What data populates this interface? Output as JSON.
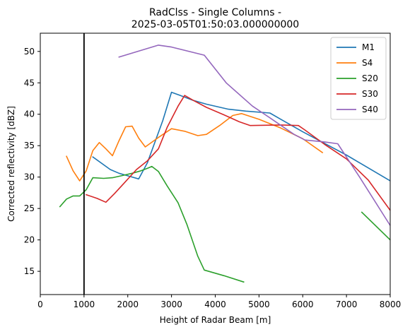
{
  "chart_data": {
    "type": "line",
    "title_lines": [
      "RadClss - Single Columns -",
      "2025-03-05T01:50:03.000000000"
    ],
    "xlabel": "Height of Radar Beam [m]",
    "ylabel": "Corrected reflectivity [dBZ]",
    "xlim": [
      0,
      8000
    ],
    "ylim": [
      11.3,
      52.9
    ],
    "x_ticks": [
      0,
      1000,
      2000,
      3000,
      4000,
      5000,
      6000,
      7000,
      8000
    ],
    "y_ticks": [
      15,
      20,
      25,
      30,
      35,
      40,
      45,
      50
    ],
    "grid": false,
    "legend_position": "top-right",
    "reference_line": {
      "x": 1000,
      "color": "#000000"
    },
    "series": [
      {
        "name": "M1",
        "color": "#1f77b4",
        "segments": [
          [
            [
              1200,
              33.2
            ],
            [
              1600,
              31.2
            ],
            [
              1800,
              30.6
            ],
            [
              2000,
              30.2
            ],
            [
              2250,
              29.7
            ],
            [
              2450,
              32.3
            ],
            [
              2800,
              39.0
            ],
            [
              3000,
              43.5
            ],
            [
              3200,
              43.0
            ],
            [
              3500,
              42.2
            ],
            [
              3800,
              41.6
            ],
            [
              4300,
              40.8
            ],
            [
              4700,
              40.5
            ],
            [
              5250,
              40.2
            ],
            [
              5500,
              39.2
            ],
            [
              6000,
              37.2
            ],
            [
              7000,
              33.5
            ],
            [
              8000,
              29.4
            ]
          ]
        ]
      },
      {
        "name": "S4",
        "color": "#ff7f0e",
        "segments": [
          [
            [
              600,
              33.3
            ],
            [
              750,
              31.0
            ],
            [
              900,
              29.4
            ],
            [
              1050,
              31.0
            ],
            [
              1200,
              34.2
            ],
            [
              1350,
              35.5
            ],
            [
              1500,
              34.5
            ],
            [
              1650,
              33.4
            ],
            [
              1800,
              35.8
            ],
            [
              1950,
              38.0
            ],
            [
              2100,
              38.1
            ],
            [
              2250,
              36.2
            ],
            [
              2400,
              34.8
            ],
            [
              2700,
              36.3
            ],
            [
              3000,
              37.7
            ],
            [
              3300,
              37.3
            ],
            [
              3600,
              36.6
            ],
            [
              3800,
              36.8
            ],
            [
              4100,
              38.2
            ],
            [
              4400,
              39.8
            ],
            [
              4600,
              40.1
            ],
            [
              5000,
              39.2
            ],
            [
              5500,
              37.8
            ],
            [
              6000,
              36.1
            ],
            [
              6450,
              33.9
            ]
          ]
        ]
      },
      {
        "name": "S20",
        "color": "#2ca02c",
        "segments": [
          [
            [
              450,
              25.3
            ],
            [
              600,
              26.5
            ],
            [
              750,
              27.0
            ],
            [
              900,
              27.0
            ],
            [
              1050,
              28.0
            ],
            [
              1200,
              29.9
            ],
            [
              1450,
              29.8
            ],
            [
              1650,
              29.9
            ],
            [
              1850,
              30.2
            ],
            [
              2100,
              30.6
            ],
            [
              2300,
              31.0
            ],
            [
              2450,
              31.4
            ],
            [
              2550,
              31.7
            ],
            [
              2700,
              30.9
            ],
            [
              2900,
              28.6
            ],
            [
              3150,
              25.9
            ],
            [
              3350,
              22.5
            ],
            [
              3600,
              17.4
            ],
            [
              3750,
              15.2
            ],
            [
              4200,
              14.3
            ],
            [
              4650,
              13.3
            ]
          ],
          [
            [
              7350,
              24.4
            ],
            [
              8000,
              20.0
            ]
          ]
        ]
      },
      {
        "name": "S30",
        "color": "#d62728",
        "segments": [
          [
            [
              1050,
              27.2
            ],
            [
              1300,
              26.6
            ],
            [
              1500,
              26.0
            ],
            [
              1700,
              27.4
            ],
            [
              1950,
              29.3
            ],
            [
              2200,
              31.2
            ],
            [
              2450,
              32.6
            ],
            [
              2700,
              34.5
            ],
            [
              2900,
              37.9
            ],
            [
              3150,
              41.3
            ],
            [
              3300,
              43.0
            ],
            [
              3500,
              42.2
            ],
            [
              3800,
              41.1
            ],
            [
              4200,
              39.9
            ],
            [
              4550,
              38.8
            ],
            [
              4800,
              38.2
            ],
            [
              5500,
              38.3
            ],
            [
              5900,
              38.2
            ],
            [
              6050,
              37.5
            ],
            [
              6500,
              35.2
            ],
            [
              7000,
              32.9
            ],
            [
              7500,
              29.5
            ],
            [
              8000,
              24.7
            ]
          ]
        ]
      },
      {
        "name": "S40",
        "color": "#9467bd",
        "segments": [
          [
            [
              1800,
              49.1
            ],
            [
              2700,
              51.0
            ],
            [
              3000,
              50.7
            ],
            [
              3750,
              49.4
            ],
            [
              4250,
              45.0
            ],
            [
              4850,
              41.3
            ],
            [
              5300,
              39.2
            ],
            [
              5800,
              36.8
            ],
            [
              6050,
              35.9
            ],
            [
              6500,
              35.6
            ],
            [
              6800,
              35.3
            ],
            [
              7300,
              30.0
            ],
            [
              8000,
              22.3
            ]
          ]
        ]
      }
    ]
  }
}
